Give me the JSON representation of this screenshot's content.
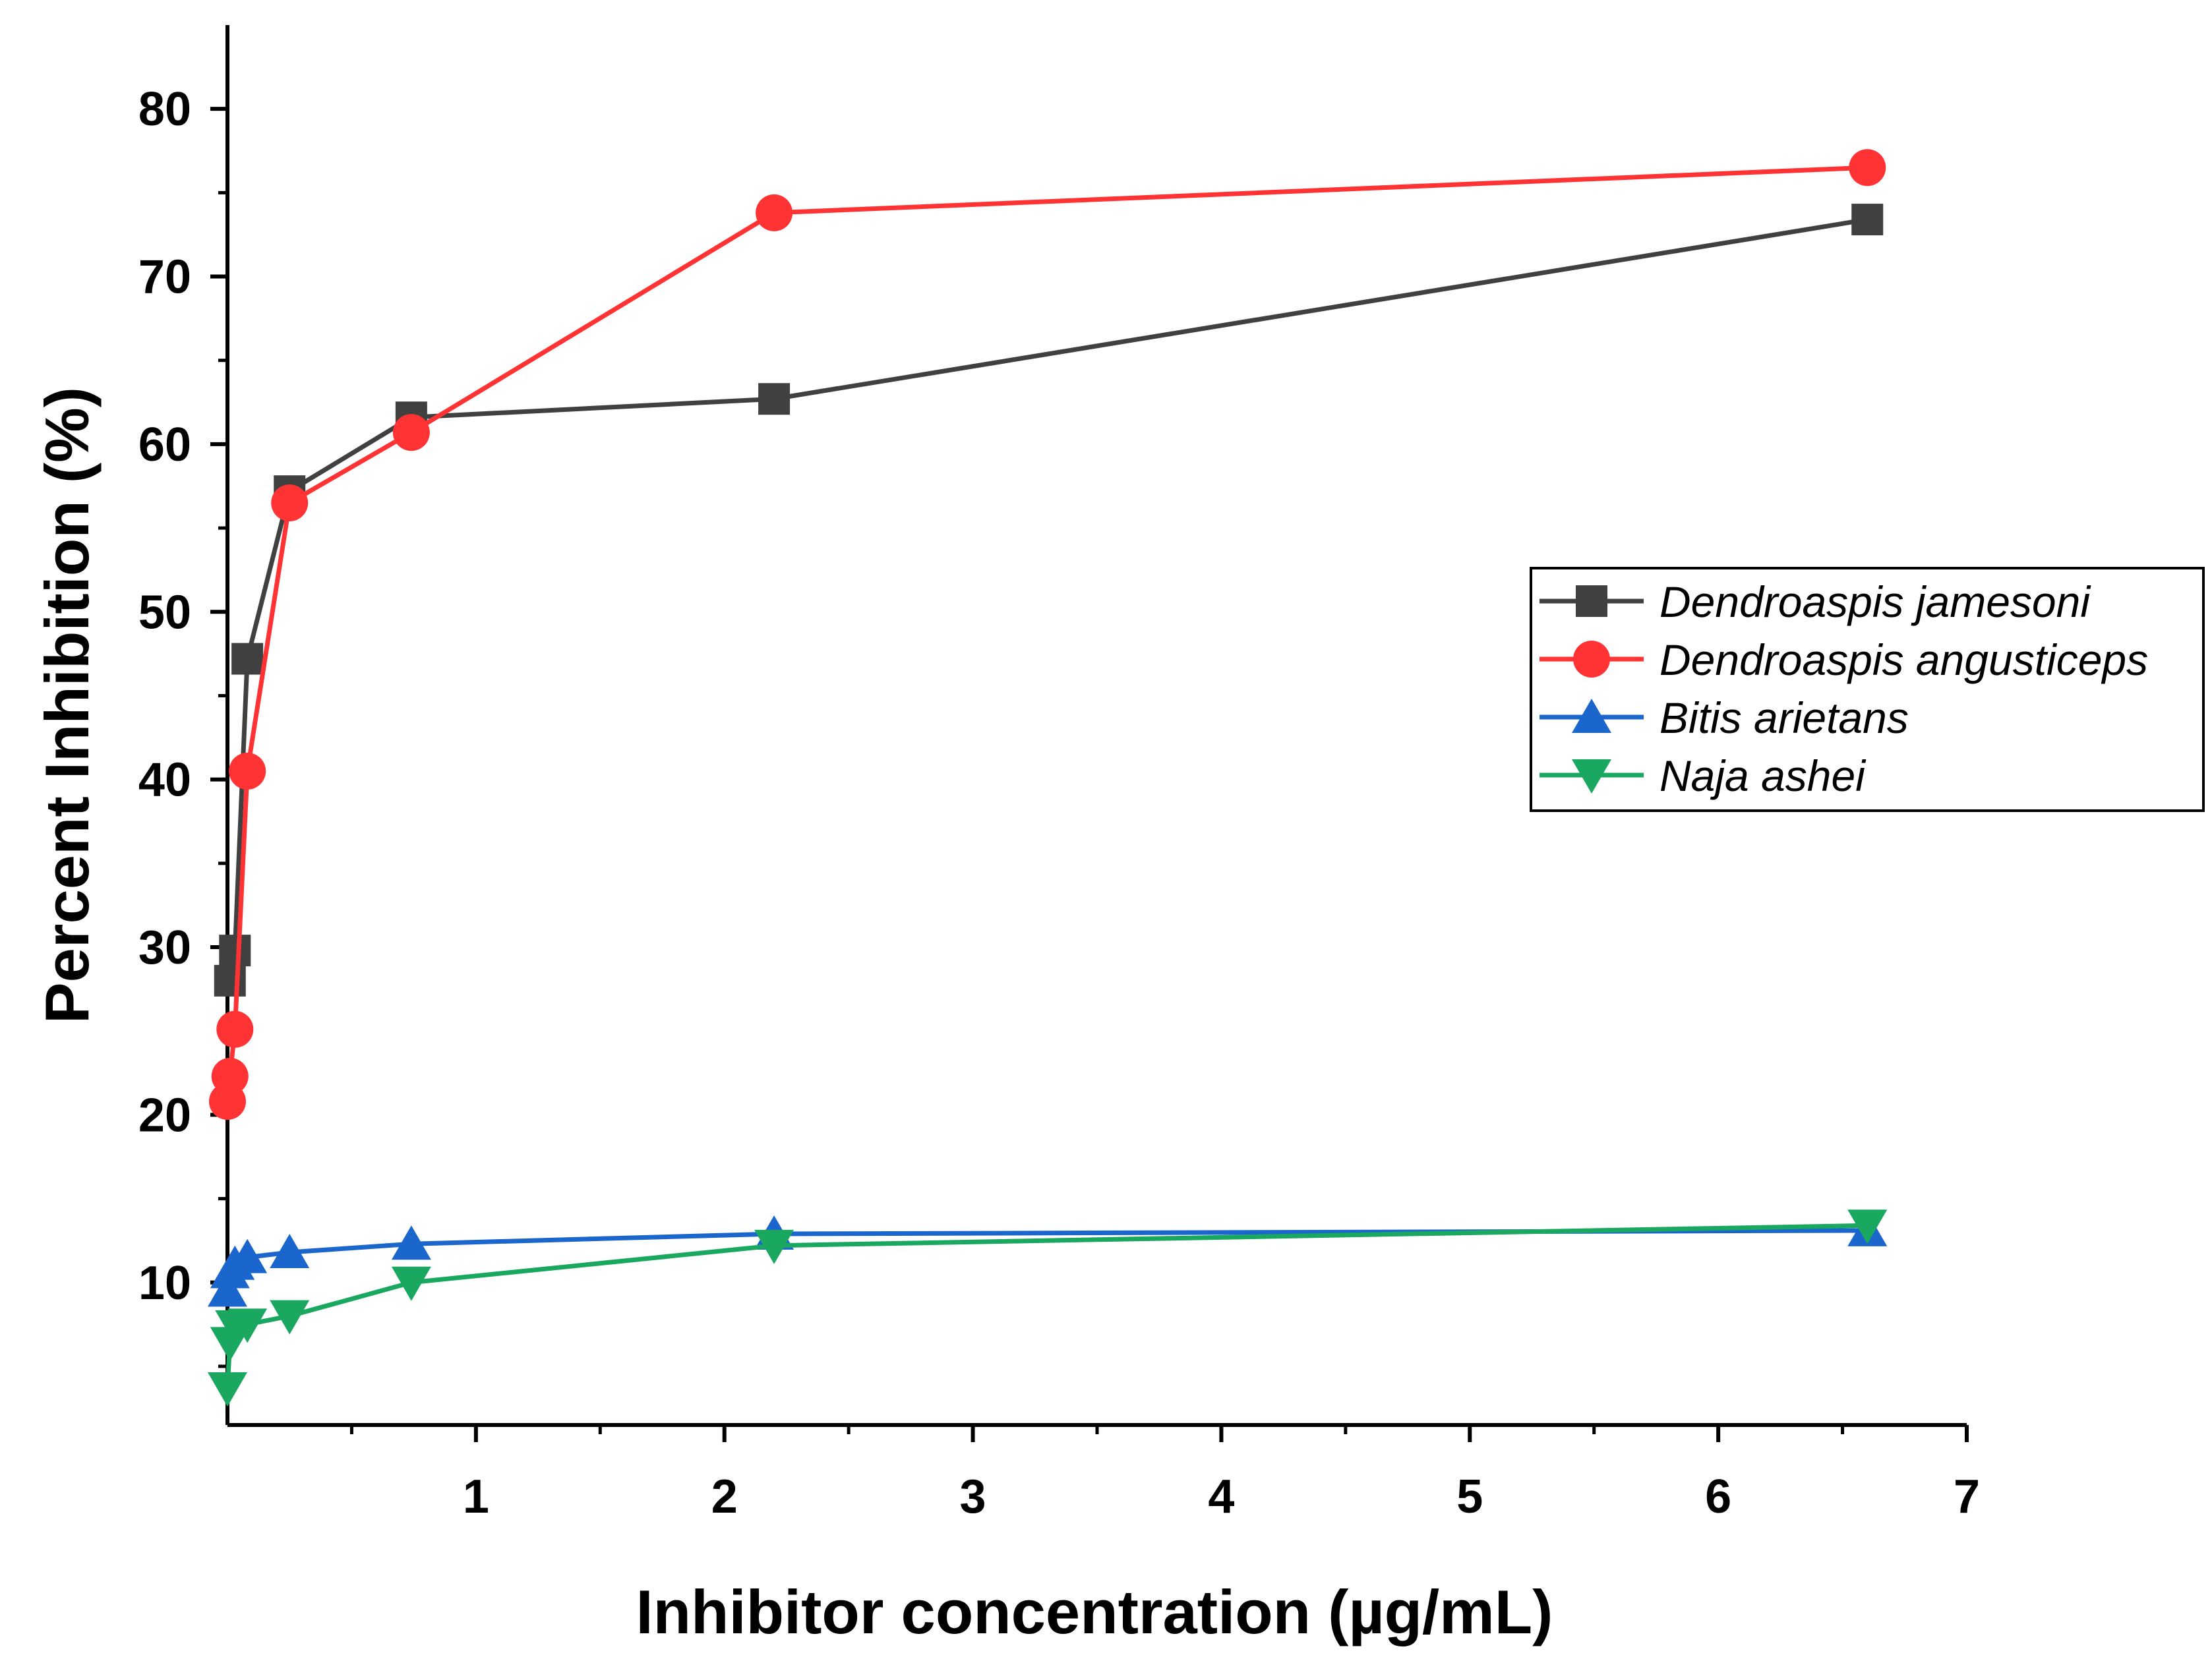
{
  "chart_data": {
    "type": "line",
    "title": "",
    "xlabel": "Inhibitor concentration (µg/mL)",
    "ylabel": "Percent Inhibition (%)",
    "xlim": [
      0,
      7
    ],
    "ylim": [
      1.5,
      85
    ],
    "x_ticks": [
      1,
      2,
      3,
      4,
      5,
      6,
      7
    ],
    "x_minor_ticks": [
      0.5,
      1.5,
      2.5,
      3.5,
      4.5,
      5.5,
      6.5
    ],
    "y_ticks": [
      10,
      20,
      30,
      40,
      50,
      60,
      70,
      80
    ],
    "y_minor_ticks": [
      5,
      15,
      25,
      35,
      45,
      55,
      65,
      75
    ],
    "legend_position": "right",
    "series": [
      {
        "name": "Dendroaspis jamesoni",
        "color": "#404040",
        "marker": "square",
        "x": [
          0.01,
          0.03,
          0.08,
          0.25,
          0.74,
          2.2,
          6.6
        ],
        "y": [
          28.0,
          29.8,
          47.2,
          57.2,
          61.6,
          62.7,
          73.4
        ]
      },
      {
        "name": "Dendroaspis angusticeps",
        "color": "#ff3333",
        "marker": "circle",
        "x": [
          0.0,
          0.01,
          0.03,
          0.08,
          0.25,
          0.74,
          2.2,
          6.6
        ],
        "y": [
          20.8,
          22.3,
          25.1,
          40.5,
          56.5,
          60.7,
          73.8,
          76.5
        ]
      },
      {
        "name": "Bitis arietans",
        "color": "#1a66cc",
        "marker": "triangle-up",
        "x": [
          0.0,
          0.01,
          0.03,
          0.08,
          0.25,
          0.74,
          2.2,
          6.6
        ],
        "y": [
          9.5,
          10.6,
          11.1,
          11.5,
          11.8,
          12.3,
          12.9,
          13.1
        ]
      },
      {
        "name": "Naja ashei",
        "color": "#1aa860",
        "marker": "triangle-down",
        "x": [
          0.0,
          0.01,
          0.03,
          0.08,
          0.25,
          0.74,
          2.2,
          6.6
        ],
        "y": [
          3.7,
          6.4,
          7.4,
          7.5,
          8.0,
          10.0,
          12.2,
          13.4
        ]
      }
    ]
  }
}
